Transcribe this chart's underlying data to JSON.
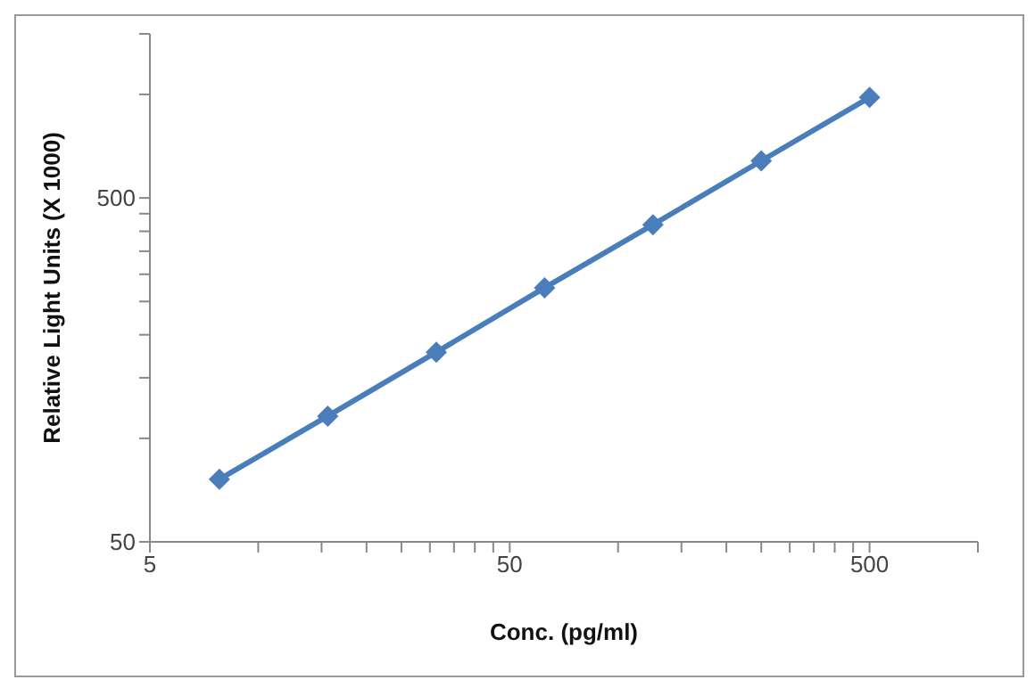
{
  "chart_data": {
    "type": "line",
    "xlabel": "Conc. (pg/ml)",
    "ylabel": "Relative Light Units (X 1000)",
    "x": [
      7.8,
      15.6,
      31.25,
      62.5,
      125,
      250,
      500
    ],
    "series": [
      {
        "color": "#4a7ebb",
        "values": [
          76,
          116,
          178,
          274,
          418,
          641,
          980
        ]
      }
    ],
    "log": "xy",
    "marker": "diamond",
    "line_style": "solid",
    "grid": false,
    "legend": false,
    "xlim": [
      5,
      1000
    ],
    "ylim": [
      50,
      1500
    ],
    "xticks": [
      5,
      {
        "value": 10,
        "label": null
      },
      {
        "value": 15,
        "label": null
      },
      {
        "value": 20,
        "label": null
      },
      {
        "value": 25,
        "label": null
      },
      {
        "value": 30,
        "label": null
      },
      {
        "value": 35,
        "label": null
      },
      {
        "value": 40,
        "label": null
      },
      {
        "value": 45,
        "label": null
      },
      50,
      {
        "value": 100,
        "label": null
      },
      {
        "value": 150,
        "label": null
      },
      {
        "value": 200,
        "label": null
      },
      {
        "value": 250,
        "label": null
      },
      {
        "value": 300,
        "label": null
      },
      {
        "value": 350,
        "label": null
      },
      {
        "value": 400,
        "label": null
      },
      {
        "value": 450,
        "label": null
      },
      500,
      {
        "value": 1000,
        "label": null
      }
    ],
    "yticks": [
      50,
      {
        "value": 100,
        "label": null
      },
      {
        "value": 150,
        "label": null
      },
      {
        "value": 200,
        "label": null
      },
      {
        "value": 250,
        "label": null
      },
      {
        "value": 300,
        "label": null
      },
      {
        "value": 350,
        "label": null
      },
      {
        "value": 400,
        "label": null
      },
      {
        "value": 450,
        "label": null
      },
      500,
      {
        "value": 1000,
        "label": null
      },
      {
        "value": 1500,
        "label": null
      }
    ]
  }
}
